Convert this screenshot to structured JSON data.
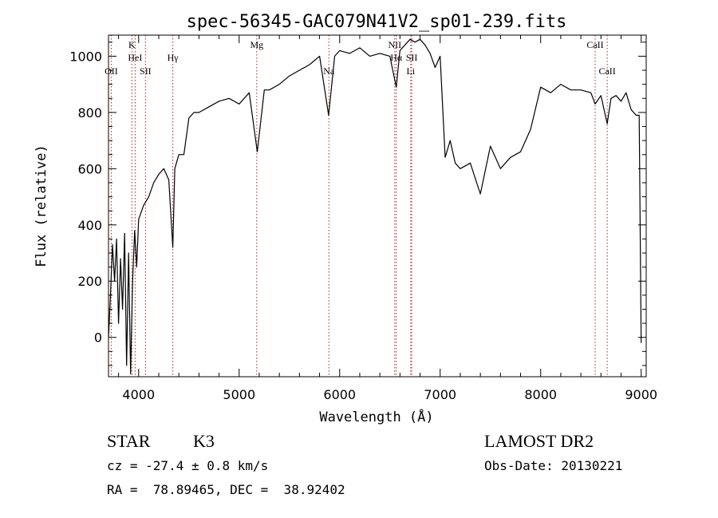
{
  "chart_data": {
    "type": "line",
    "title": "spec-56345-GAC079N41V2_sp01-239.fits",
    "xlabel": "Wavelength (Å)",
    "ylabel": "Flux (relative)",
    "xlim": [
      3700,
      9050
    ],
    "ylim": [
      -140,
      1075
    ],
    "xticks": [
      4000,
      5000,
      6000,
      7000,
      8000,
      9000
    ],
    "yticks": [
      0,
      200,
      400,
      600,
      800,
      1000
    ],
    "grid": false,
    "series": [
      {
        "x": [
          3700,
          3720,
          3740,
          3760,
          3780,
          3800,
          3820,
          3840,
          3860,
          3880,
          3900,
          3920,
          3940,
          3960,
          3980,
          4000,
          4050,
          4100,
          4150,
          4200,
          4250,
          4300,
          4340,
          4360,
          4400,
          4450,
          4500,
          4550,
          4600,
          4700,
          4800,
          4900,
          5000,
          5100,
          5180,
          5250,
          5300,
          5400,
          5500,
          5600,
          5700,
          5800,
          5890,
          5950,
          6000,
          6100,
          6200,
          6300,
          6400,
          6500,
          6563,
          6600,
          6650,
          6700,
          6750,
          6800,
          6850,
          6900,
          6950,
          7000,
          7050,
          7100,
          7150,
          7200,
          7300,
          7400,
          7500,
          7600,
          7700,
          7800,
          7900,
          8000,
          8100,
          8200,
          8300,
          8400,
          8500,
          8542,
          8600,
          8662,
          8700,
          8750,
          8800,
          8850,
          8900,
          8950,
          8980,
          9000
        ],
        "y": [
          0,
          150,
          330,
          200,
          350,
          50,
          280,
          100,
          370,
          -100,
          300,
          -130,
          200,
          380,
          250,
          420,
          470,
          500,
          550,
          580,
          600,
          560,
          320,
          600,
          650,
          650,
          780,
          800,
          800,
          820,
          840,
          850,
          830,
          870,
          660,
          880,
          880,
          900,
          930,
          950,
          970,
          1000,
          790,
          1000,
          1020,
          1010,
          1030,
          1000,
          1010,
          1000,
          890,
          1020,
          1040,
          1060,
          1050,
          1060,
          1040,
          1010,
          960,
          1000,
          640,
          700,
          620,
          600,
          620,
          510,
          680,
          600,
          640,
          660,
          740,
          890,
          870,
          900,
          880,
          880,
          870,
          830,
          860,
          760,
          850,
          860,
          840,
          870,
          810,
          790,
          790,
          -20
        ]
      }
    ],
    "lines": [
      {
        "label": "OII",
        "x": 3727
      },
      {
        "label": "K",
        "x": 3933
      },
      {
        "label": "HeI",
        "x": 3965
      },
      {
        "label": "SII",
        "x": 4068
      },
      {
        "label": "Hγ",
        "x": 4340
      },
      {
        "label": "Mg",
        "x": 5175
      },
      {
        "label": "Na",
        "x": 5893
      },
      {
        "label": "NII",
        "x": 6548
      },
      {
        "label": "Hα",
        "x": 6563
      },
      {
        "label": "SII",
        "x": 6717
      },
      {
        "label": "Li",
        "x": 6707
      },
      {
        "label": "CaII",
        "x": 8542
      },
      {
        "label": "CaII",
        "x": 8662
      }
    ],
    "line_color": "#000000",
    "marker_color": "#b22222"
  },
  "info": {
    "object_class": "STAR",
    "subclass": "K3",
    "survey": "LAMOST DR2",
    "redshift": "cz = -27.4 ± 0.8 km/s",
    "obs_date": "Obs-Date: 20130221",
    "coords": "RA =  78.89465, DEC =  38.92402"
  }
}
